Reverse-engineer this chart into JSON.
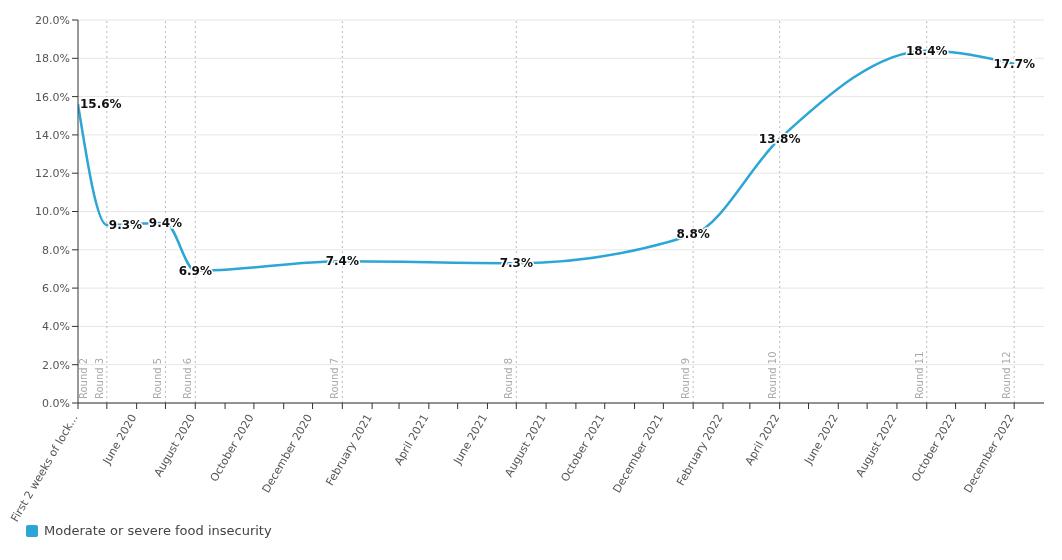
{
  "chart_data": {
    "type": "line",
    "x": [
      "2020-04",
      "2020-05",
      "2020-07",
      "2020-08",
      "2021-01",
      "2021-07",
      "2022-01",
      "2022-04",
      "2022-09",
      "2022-12"
    ],
    "series": [
      {
        "name": "Moderate or severe food insecurity",
        "color": "#2ba6d6",
        "values": [
          15.6,
          9.3,
          9.4,
          6.9,
          7.4,
          7.3,
          8.8,
          13.8,
          18.4,
          17.7
        ],
        "value_labels": [
          "15.6%",
          "9.3%",
          "9.4%",
          "6.9%",
          "7.4%",
          "7.3%",
          "8.8%",
          "13.8%",
          "18.4%",
          "17.7%"
        ]
      }
    ],
    "ylim": [
      0,
      20
    ],
    "yticks": [
      {
        "value": 0,
        "label": "0.0%"
      },
      {
        "value": 2,
        "label": "2.0%"
      },
      {
        "value": 4,
        "label": "4.0%"
      },
      {
        "value": 6,
        "label": "6.0%"
      },
      {
        "value": 8,
        "label": "8.0%"
      },
      {
        "value": 10,
        "label": "10.0%"
      },
      {
        "value": 12,
        "label": "12.0%"
      },
      {
        "value": 14,
        "label": "14.0%"
      },
      {
        "value": 16,
        "label": "16.0%"
      },
      {
        "value": 18,
        "label": "18.0%"
      },
      {
        "value": 20,
        "label": "20.0%"
      }
    ],
    "xlim": [
      "2020-04",
      "2023-01"
    ],
    "xticks": [
      {
        "value": "2020-04",
        "label": "First 2 weeks of lock..."
      },
      {
        "value": "2020-05",
        "label": null
      },
      {
        "value": "2020-06",
        "label": "June 2020"
      },
      {
        "value": "2020-07",
        "label": null
      },
      {
        "value": "2020-08",
        "label": "August 2020"
      },
      {
        "value": "2020-09",
        "label": null
      },
      {
        "value": "2020-10",
        "label": "October 2020"
      },
      {
        "value": "2020-11",
        "label": null
      },
      {
        "value": "2020-12",
        "label": "December 2020"
      },
      {
        "value": "2021-01",
        "label": null
      },
      {
        "value": "2021-02",
        "label": "February 2021"
      },
      {
        "value": "2021-03",
        "label": null
      },
      {
        "value": "2021-04",
        "label": "April 2021"
      },
      {
        "value": "2021-05",
        "label": null
      },
      {
        "value": "2021-06",
        "label": "June 2021"
      },
      {
        "value": "2021-07",
        "label": null
      },
      {
        "value": "2021-08",
        "label": "August 2021"
      },
      {
        "value": "2021-09",
        "label": null
      },
      {
        "value": "2021-10",
        "label": "October 2021"
      },
      {
        "value": "2021-11",
        "label": null
      },
      {
        "value": "2021-12",
        "label": "December 2021"
      },
      {
        "value": "2022-01",
        "label": null
      },
      {
        "value": "2022-02",
        "label": "February 2022"
      },
      {
        "value": "2022-03",
        "label": null
      },
      {
        "value": "2022-04",
        "label": "April 2022"
      },
      {
        "value": "2022-05",
        "label": null
      },
      {
        "value": "2022-06",
        "label": "June 2022"
      },
      {
        "value": "2022-07",
        "label": null
      },
      {
        "value": "2022-08",
        "label": "August 2022"
      },
      {
        "value": "2022-09",
        "label": null
      },
      {
        "value": "2022-10",
        "label": "October 2022"
      },
      {
        "value": "2022-11",
        "label": null
      },
      {
        "value": "2022-12",
        "label": "December 2022"
      }
    ],
    "ref_lines": [
      {
        "axis": "x",
        "value": "2020-05",
        "label": "Round 3",
        "color": "#bbbbbb",
        "line_style": "dotted"
      },
      {
        "axis": "x",
        "value": "2020-07",
        "label": "Round 5",
        "color": "#bbbbbb",
        "line_style": "dotted"
      },
      {
        "axis": "x",
        "value": "2020-08",
        "label": "Round 6",
        "color": "#bbbbbb",
        "line_style": "dotted"
      },
      {
        "axis": "x",
        "value": "2021-01",
        "label": "Round 7",
        "color": "#bbbbbb",
        "line_style": "dotted"
      },
      {
        "axis": "x",
        "value": "2021-07",
        "label": "Round 8",
        "color": "#bbbbbb",
        "line_style": "dotted"
      },
      {
        "axis": "x",
        "value": "2022-01",
        "label": "Round 9",
        "color": "#bbbbbb",
        "line_style": "dotted"
      },
      {
        "axis": "x",
        "value": "2022-04",
        "label": "Round 10",
        "color": "#bbbbbb",
        "line_style": "dotted"
      },
      {
        "axis": "x",
        "value": "2022-09",
        "label": "Round 11",
        "color": "#bbbbbb",
        "line_style": "dotted"
      },
      {
        "axis": "x",
        "value": "2022-12",
        "label": "Round 12",
        "color": "#bbbbbb",
        "line_style": "dotted"
      }
    ],
    "annotations": [
      "Round 2"
    ],
    "grid": "y",
    "legend": "bottom left",
    "marker": "none",
    "line_style": "solid"
  }
}
